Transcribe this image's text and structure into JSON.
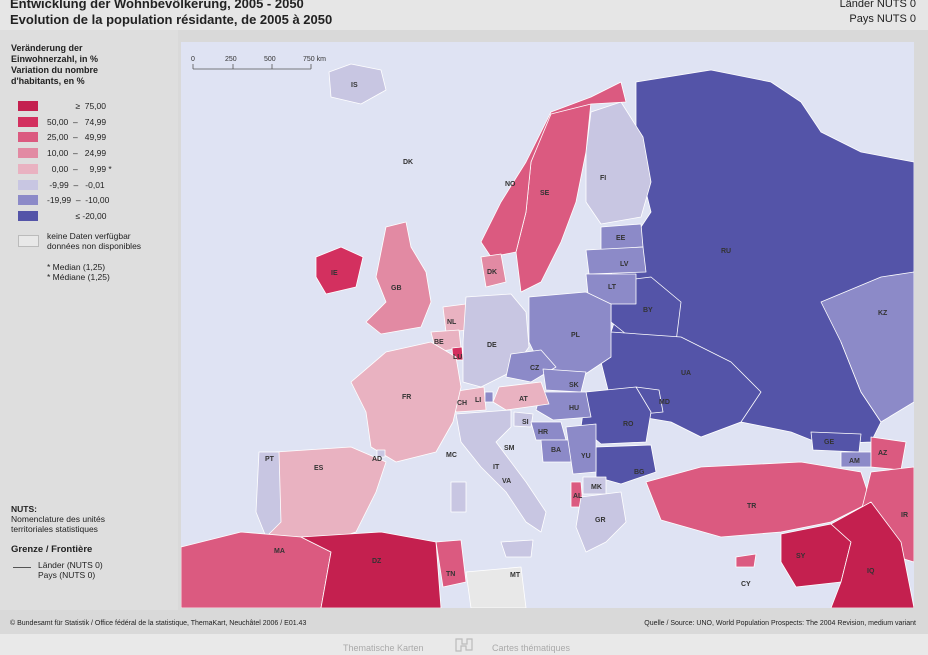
{
  "header": {
    "title_de": "Entwicklung der Wohnbevölkerung, 2005 - 2050",
    "title_fr": "Evolution de la population résidante, de 2005 à 2050",
    "level_de": "Länder NUTS 0",
    "level_fr": "Pays NUTS 0"
  },
  "legend": {
    "heading": [
      "Veränderung der",
      "Einwohnerzahl, in %",
      "Variation du nombre",
      "d'habitants, en %"
    ],
    "classes": [
      {
        "label": "            ≥  75,00",
        "color": "#c4204f"
      },
      {
        "label": "50,00  –   74,99",
        "color": "#d3305f"
      },
      {
        "label": "25,00  –   49,99",
        "color": "#db5a80"
      },
      {
        "label": "10,00  –   24,99",
        "color": "#e28aa3"
      },
      {
        "label": "  0,00  –     9,99 *",
        "color": "#e9b2c1"
      },
      {
        "label": " -9,99  –   -0,01",
        "color": "#c8c6e2"
      },
      {
        "label": "-19,99  –  -10,00",
        "color": "#8c8ac8"
      },
      {
        "label": "            ≤ -20,00",
        "color": "#5454a8"
      }
    ],
    "no_data": [
      "keine Daten verfügbar",
      "données non disponibles"
    ],
    "median": [
      "* Median (1,25)",
      "* Médiane (1,25)"
    ],
    "nuts_title": "NUTS:",
    "nuts_desc": [
      "Nomenclature des unités",
      "territoriales statistiques"
    ],
    "border_title": "Grenze / Frontière",
    "border_items": [
      "Länder (NUTS 0)",
      "Pays (NUTS 0)"
    ]
  },
  "map": {
    "scale_ticks": [
      "0",
      "250",
      "500",
      "750 km"
    ],
    "sea_color": "#dfe3f3",
    "country_labels": [
      "IS",
      "DK",
      "NO",
      "SE",
      "FI",
      "EE",
      "LV",
      "LT",
      "IE",
      "GB",
      "DK",
      "NL",
      "BE",
      "LU",
      "DE",
      "PL",
      "CZ",
      "SK",
      "HU",
      "AT",
      "CH",
      "LI",
      "FR",
      "SI",
      "HR",
      "BA",
      "YU",
      "RO",
      "MD",
      "UA",
      "BY",
      "RU",
      "KZ",
      "PT",
      "ES",
      "AD",
      "MC",
      "SM",
      "IT",
      "VA",
      "BG",
      "MK",
      "AL",
      "GR",
      "TR",
      "GE",
      "AM",
      "AZ",
      "CY",
      "MA",
      "DZ",
      "TN",
      "MT",
      "SY",
      "IQ",
      "IR"
    ]
  },
  "footer": {
    "source_left": "© Bundesamt für Statistik / Office fédéral de la statistique, ThemaKart, Neuchâtel 2006 / E01.43",
    "source_right": "Quelle / Source: UNO, World Population Prospects: The 2004 Revision, medium variant",
    "series_de": "Thematische Karten",
    "series_fr": "Cartes thématiques"
  },
  "colors": {
    "sea": "#dfe3f3",
    "no_data": "#e8e8e8",
    "border": "#ffffff"
  }
}
